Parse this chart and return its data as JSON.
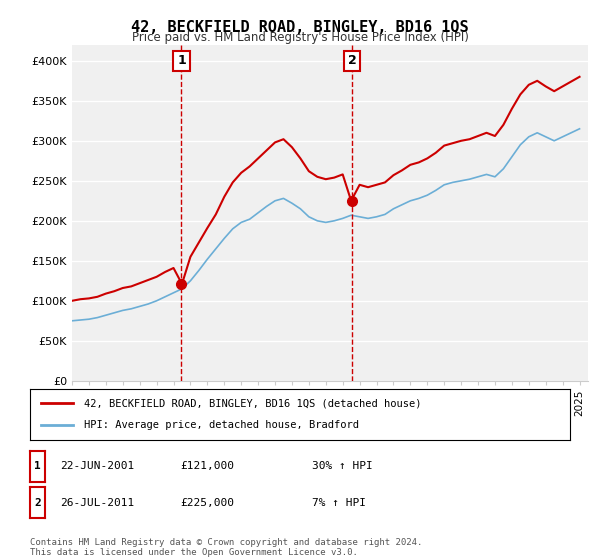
{
  "title": "42, BECKFIELD ROAD, BINGLEY, BD16 1QS",
  "subtitle": "Price paid vs. HM Land Registry's House Price Index (HPI)",
  "ylabel_ticks": [
    "£0",
    "£50K",
    "£100K",
    "£150K",
    "£200K",
    "£250K",
    "£300K",
    "£350K",
    "£400K"
  ],
  "ytick_values": [
    0,
    50000,
    100000,
    150000,
    200000,
    250000,
    300000,
    350000,
    400000
  ],
  "ylim": [
    0,
    420000
  ],
  "xlim_start": 1995.0,
  "xlim_end": 2025.5,
  "sale1_x": 2001.47,
  "sale1_y": 121000,
  "sale1_label": "1",
  "sale2_x": 2011.56,
  "sale2_y": 225000,
  "sale2_label": "2",
  "legend_line1": "42, BECKFIELD ROAD, BINGLEY, BD16 1QS (detached house)",
  "legend_line2": "HPI: Average price, detached house, Bradford",
  "table_row1": [
    "1",
    "22-JUN-2001",
    "£121,000",
    "30% ↑ HPI"
  ],
  "table_row2": [
    "2",
    "26-JUL-2011",
    "£225,000",
    "7% ↑ HPI"
  ],
  "footnote": "Contains HM Land Registry data © Crown copyright and database right 2024.\nThis data is licensed under the Open Government Licence v3.0.",
  "hpi_color": "#6baed6",
  "price_color": "#cc0000",
  "bg_color": "#ffffff",
  "plot_bg_color": "#f0f0f0",
  "grid_color": "#ffffff",
  "dashed_line_color": "#cc0000"
}
